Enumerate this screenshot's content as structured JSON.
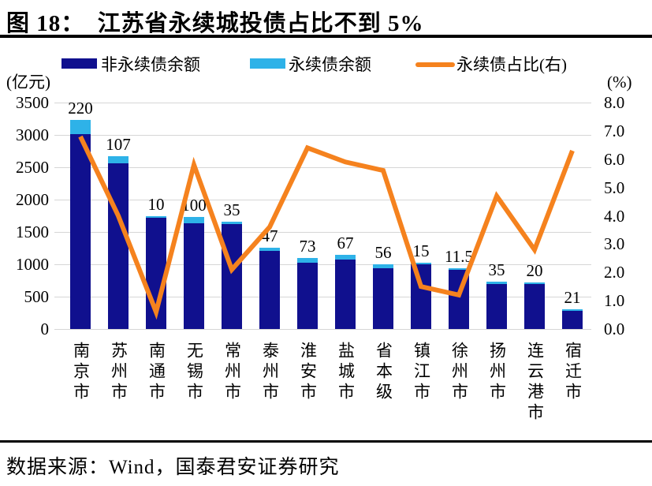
{
  "title": "图 18：  江苏省永续城投债占比不到 5%",
  "source": "数据来源：Wind，国泰君安证券研究",
  "chart_data": {
    "type": "bar",
    "subtype": "stacked-bars-with-line-overlay",
    "grid": true,
    "legend_position": "top",
    "categories": [
      "南京市",
      "苏州市",
      "南通市",
      "无锡市",
      "常州市",
      "泰州市",
      "淮安市",
      "盐城市",
      "省本级",
      "镇江市",
      "徐州市",
      "扬州市",
      "连云港市",
      "宿迁市"
    ],
    "series": [
      {
        "name": "非永续债余额",
        "type": "bar",
        "axis": "left",
        "color": "#10108e",
        "values": [
          3015,
          2560,
          1720,
          1630,
          1620,
          1210,
          1025,
          1075,
          944,
          995,
          920,
          700,
          695,
          285
        ]
      },
      {
        "name": "永续债余额",
        "type": "bar",
        "axis": "left",
        "color": "#2eb2e8",
        "values": [
          220,
          107,
          10,
          100,
          35,
          47,
          73,
          67,
          56,
          15,
          11.5,
          35,
          20,
          21
        ]
      },
      {
        "name": "永续债占比(右)",
        "type": "line",
        "axis": "right",
        "color": "#f5821e",
        "values": [
          6.8,
          4.0,
          0.6,
          5.8,
          2.1,
          3.6,
          6.4,
          5.9,
          5.6,
          1.5,
          1.2,
          4.7,
          2.8,
          6.3
        ]
      }
    ],
    "bar_data_labels": [
      "220",
      "107",
      "10",
      "100",
      "35",
      "47",
      "73",
      "67",
      "56",
      "15",
      "11.5",
      "35",
      "20",
      "21"
    ],
    "left_axis": {
      "unit": "(亿元)",
      "min": 0,
      "max": 3500,
      "step": 500,
      "tick_labels": [
        "3500",
        "3000",
        "2500",
        "2000",
        "1500",
        "1000",
        "500",
        "0"
      ]
    },
    "right_axis": {
      "unit": "(%)",
      "min": 0,
      "max": 8,
      "step": 1,
      "tick_labels": [
        "8.0",
        "7.0",
        "6.0",
        "5.0",
        "4.0",
        "3.0",
        "2.0",
        "1.0",
        "0.0"
      ]
    },
    "colors": {
      "gridline": "#d6d6d6",
      "text": "#000000",
      "rule": "#000000"
    }
  }
}
